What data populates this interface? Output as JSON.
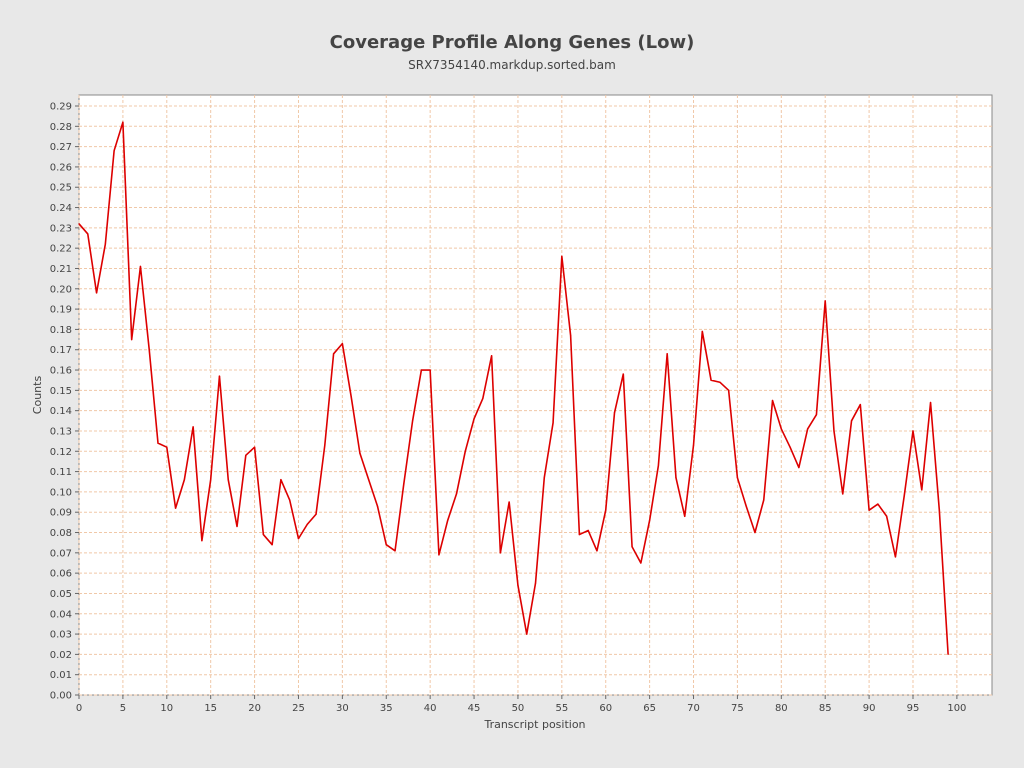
{
  "chart_data": {
    "type": "line",
    "title": "Coverage Profile Along Genes (Low)",
    "subtitle": "SRX7354140.markdup.sorted.bam",
    "xlabel": "Transcript position",
    "ylabel": "Counts",
    "xlim": [
      0,
      104
    ],
    "ylim": [
      0,
      0.29
    ],
    "x_ticks": [
      0,
      5,
      10,
      15,
      20,
      25,
      30,
      35,
      40,
      45,
      50,
      55,
      60,
      65,
      70,
      75,
      80,
      85,
      90,
      95,
      100
    ],
    "y_ticks": [
      "0.00",
      "0.01",
      "0.02",
      "0.03",
      "0.04",
      "0.05",
      "0.06",
      "0.07",
      "0.08",
      "0.09",
      "0.10",
      "0.11",
      "0.12",
      "0.13",
      "0.14",
      "0.15",
      "0.16",
      "0.17",
      "0.18",
      "0.19",
      "0.20",
      "0.21",
      "0.22",
      "0.23",
      "0.24",
      "0.25",
      "0.26",
      "0.27",
      "0.28",
      "0.29"
    ],
    "grid": true,
    "line_color": "#dd0000",
    "grid_color": "#f0c8a8",
    "series": [
      {
        "x": [
          0,
          1,
          2,
          3,
          4,
          5,
          6,
          7,
          8,
          9,
          10,
          11,
          12,
          13,
          14,
          15,
          16,
          17,
          18,
          19,
          20,
          21,
          22,
          23,
          24,
          25,
          26,
          27,
          28,
          29,
          30,
          31,
          32,
          33,
          34,
          35,
          36,
          37,
          38,
          39,
          40,
          41,
          42,
          43,
          44,
          45,
          46,
          47,
          48,
          49,
          50,
          51,
          52,
          53,
          54,
          55,
          56,
          57,
          58,
          59,
          60,
          61,
          62,
          63,
          64,
          65,
          66,
          67,
          68,
          69,
          70,
          71,
          72,
          73,
          74,
          75,
          76,
          77,
          78,
          79,
          80,
          81,
          82,
          83,
          84,
          85,
          86,
          87,
          88,
          89,
          90,
          91,
          92,
          93,
          94,
          95,
          96,
          97,
          98,
          99
        ],
        "values": [
          0.232,
          0.227,
          0.198,
          0.222,
          0.268,
          0.282,
          0.175,
          0.211,
          0.17,
          0.124,
          0.122,
          0.092,
          0.106,
          0.132,
          0.076,
          0.106,
          0.157,
          0.106,
          0.083,
          0.118,
          0.122,
          0.079,
          0.074,
          0.106,
          0.096,
          0.077,
          0.084,
          0.089,
          0.123,
          0.168,
          0.173,
          0.147,
          0.119,
          0.106,
          0.093,
          0.074,
          0.071,
          0.104,
          0.135,
          0.16,
          0.16,
          0.069,
          0.086,
          0.099,
          0.12,
          0.136,
          0.146,
          0.167,
          0.07,
          0.095,
          0.054,
          0.03,
          0.055,
          0.107,
          0.134,
          0.216,
          0.177,
          0.079,
          0.081,
          0.071,
          0.091,
          0.139,
          0.158,
          0.073,
          0.065,
          0.086,
          0.113,
          0.168,
          0.107,
          0.088,
          0.123,
          0.179,
          0.155,
          0.154,
          0.15,
          0.107,
          0.093,
          0.08,
          0.096,
          0.145,
          0.131,
          0.122,
          0.112,
          0.131,
          0.138,
          0.194,
          0.13,
          0.099,
          0.135,
          0.143,
          0.091,
          0.094,
          0.088,
          0.068,
          0.098,
          0.13,
          0.101,
          0.144,
          0.091,
          0.02
        ]
      }
    ]
  }
}
